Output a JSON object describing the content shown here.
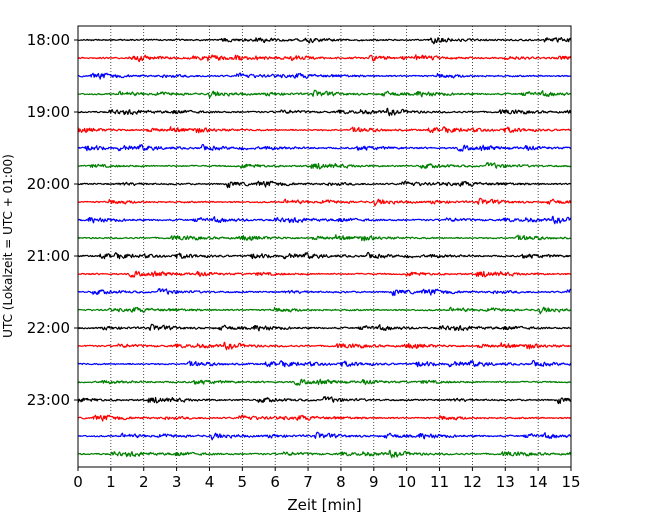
{
  "chart_data": {
    "type": "line",
    "title": "",
    "xlabel": "Zeit  [min]",
    "ylabel": "UTC (Lokalzeit = UTC + 01:00)",
    "xlim": [
      0,
      15
    ],
    "x_ticks": [
      0,
      1,
      2,
      3,
      4,
      5,
      6,
      7,
      8,
      9,
      10,
      11,
      12,
      13,
      14,
      15
    ],
    "x_tick_labels": [
      "0",
      "1",
      "2",
      "3",
      "4",
      "5",
      "6",
      "7",
      "8",
      "9",
      "10",
      "11",
      "12",
      "13",
      "14",
      "15"
    ],
    "y_tick_labels": [
      "18:00",
      "19:00",
      "20:00",
      "21:00",
      "22:00",
      "23:00"
    ],
    "vertical_grid": true,
    "grid_style": "dotted",
    "trace_interval_min": 15,
    "trace_colors": [
      "#000000",
      "#ff0000",
      "#0000ff",
      "#008000"
    ],
    "traces": [
      {
        "start": "18:00",
        "color": "#000000"
      },
      {
        "start": "18:15",
        "color": "#ff0000"
      },
      {
        "start": "18:30",
        "color": "#0000ff"
      },
      {
        "start": "18:45",
        "color": "#008000"
      },
      {
        "start": "19:00",
        "color": "#000000"
      },
      {
        "start": "19:15",
        "color": "#ff0000"
      },
      {
        "start": "19:30",
        "color": "#0000ff"
      },
      {
        "start": "19:45",
        "color": "#008000"
      },
      {
        "start": "20:00",
        "color": "#000000"
      },
      {
        "start": "20:15",
        "color": "#ff0000"
      },
      {
        "start": "20:30",
        "color": "#0000ff"
      },
      {
        "start": "20:45",
        "color": "#008000"
      },
      {
        "start": "21:00",
        "color": "#000000"
      },
      {
        "start": "21:15",
        "color": "#ff0000"
      },
      {
        "start": "21:30",
        "color": "#0000ff"
      },
      {
        "start": "21:45",
        "color": "#008000"
      },
      {
        "start": "22:00",
        "color": "#000000"
      },
      {
        "start": "22:15",
        "color": "#ff0000"
      },
      {
        "start": "22:30",
        "color": "#0000ff"
      },
      {
        "start": "22:45",
        "color": "#008000"
      },
      {
        "start": "23:00",
        "color": "#000000"
      },
      {
        "start": "23:15",
        "color": "#ff0000"
      },
      {
        "start": "23:30",
        "color": "#0000ff"
      },
      {
        "start": "23:45",
        "color": "#008000"
      }
    ]
  }
}
